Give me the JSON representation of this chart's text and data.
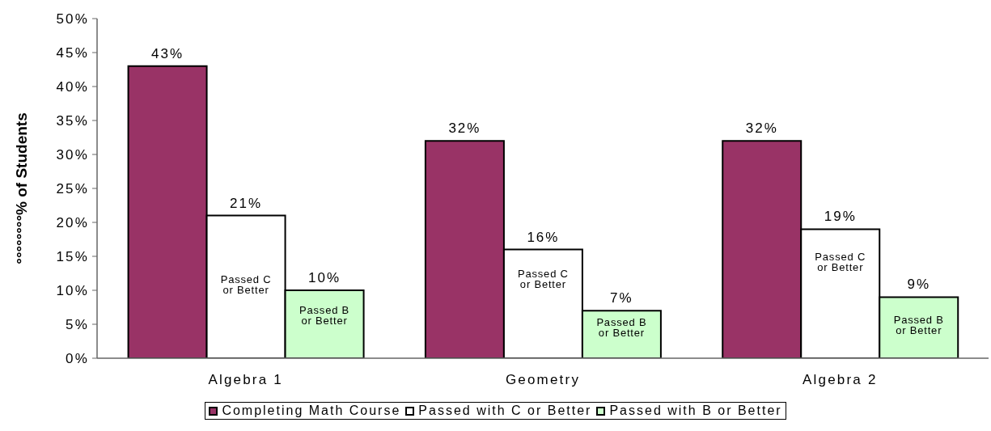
{
  "chart_data": {
    "type": "bar",
    "ylabel": "°°°°°°°°% of Students",
    "categories": [
      "Algebra 1",
      "Geometry",
      "Algebra 2"
    ],
    "series": [
      {
        "name": "Completing Math Course",
        "color": "#993366",
        "values": [
          43,
          32,
          32
        ],
        "value_labels": [
          "43%",
          "32%",
          "32%"
        ]
      },
      {
        "name": "Passed with C or Better",
        "color": "#ffffff",
        "values": [
          21,
          16,
          19
        ],
        "value_labels": [
          "21%",
          "16%",
          "19%"
        ]
      },
      {
        "name": "Passed with B or Better",
        "color": "#ccffcc",
        "values": [
          10,
          7,
          9
        ],
        "value_labels": [
          "10%",
          "7%",
          "9%"
        ]
      }
    ],
    "ylim": [
      0,
      50
    ],
    "yticks": [
      {
        "value": 0,
        "label": "0%"
      },
      {
        "value": 5,
        "label": "5%"
      },
      {
        "value": 10,
        "label": "10%"
      },
      {
        "value": 15,
        "label": "15%"
      },
      {
        "value": 20,
        "label": "20%"
      },
      {
        "value": 25,
        "label": "25%"
      },
      {
        "value": 30,
        "label": "30%"
      },
      {
        "value": 35,
        "label": "35%"
      },
      {
        "value": 40,
        "label": "40%"
      },
      {
        "value": 45,
        "label": "45%"
      },
      {
        "value": 50,
        "label": "50%"
      }
    ],
    "grid": false,
    "legend": "bottom",
    "annotations": [
      "Passed C\nor Better",
      "Passed B\nor Better",
      "Passed C\nor Better",
      "Passed B\nor Better",
      "Passed C\nor Better",
      "Passed B\nor Better"
    ]
  }
}
